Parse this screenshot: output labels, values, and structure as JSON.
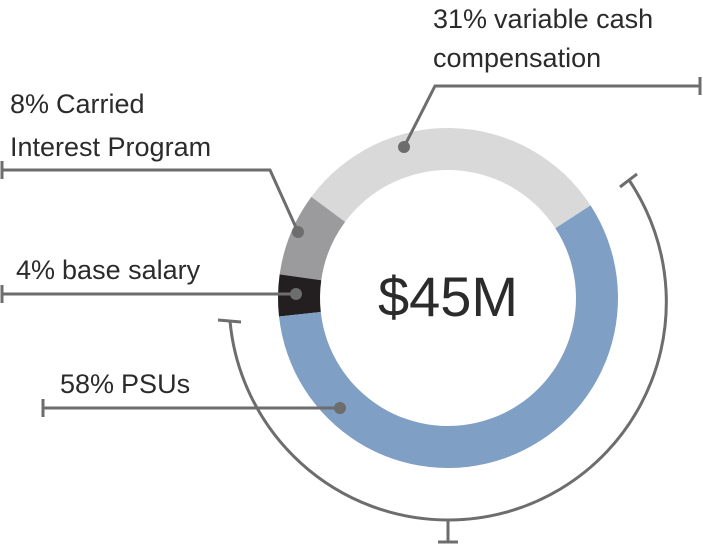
{
  "chart_data": {
    "type": "donut",
    "center_label": "$45M",
    "categories": [
      [
        "variable cash",
        "compensation"
      ],
      [
        "Carried",
        "Interest Program"
      ],
      [
        "base salary"
      ],
      [
        "PSUs"
      ]
    ],
    "values": [
      31,
      8,
      4,
      58
    ],
    "value_labels": [
      "31%",
      "8%",
      "4%",
      "58%"
    ],
    "colors": [
      "#d9d9d9",
      "#9b9a9c",
      "#231f20",
      "#7f9fc4"
    ]
  }
}
